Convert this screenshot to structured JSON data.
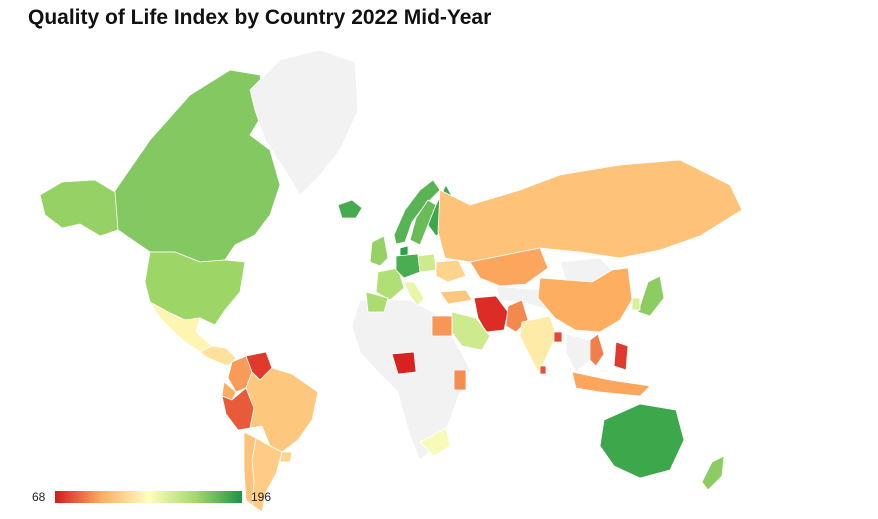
{
  "title": "Quality of Life Index by Country 2022 Mid-Year",
  "legend": {
    "min_label": "68",
    "max_label": "196",
    "min": 68,
    "max": 196
  },
  "colors": {
    "scale": [
      "#d7191c",
      "#fdae61",
      "#ffffbf",
      "#a6d96a",
      "#1a9641"
    ],
    "no_data": "#f2f2f2",
    "border": "#ffffff"
  },
  "map_data": {
    "type": "choropleth",
    "metric": "Quality of Life Index",
    "regions": [
      {
        "name": "Canada",
        "value": 172
      },
      {
        "name": "Alaska (United States)",
        "value": 168
      },
      {
        "name": "United States",
        "value": 166
      },
      {
        "name": "Mexico",
        "value": 128
      },
      {
        "name": "Central America",
        "value": 120
      },
      {
        "name": "Colombia",
        "value": 96
      },
      {
        "name": "Venezuela",
        "value": 75
      },
      {
        "name": "Ecuador",
        "value": 100
      },
      {
        "name": "Peru",
        "value": 82
      },
      {
        "name": "Brazil",
        "value": 110
      },
      {
        "name": "Argentina",
        "value": 112
      },
      {
        "name": "Chile",
        "value": 108
      },
      {
        "name": "Uruguay",
        "value": 115
      },
      {
        "name": "Greenland",
        "value": null
      },
      {
        "name": "Iceland",
        "value": 186
      },
      {
        "name": "Norway",
        "value": 182
      },
      {
        "name": "Sweden",
        "value": 178
      },
      {
        "name": "Finland",
        "value": 188
      },
      {
        "name": "Denmark",
        "value": 192
      },
      {
        "name": "United Kingdom",
        "value": 168
      },
      {
        "name": "France",
        "value": 160
      },
      {
        "name": "Spain",
        "value": 162
      },
      {
        "name": "Germany",
        "value": 185
      },
      {
        "name": "Italy",
        "value": 140
      },
      {
        "name": "Poland",
        "value": 150
      },
      {
        "name": "Ukraine",
        "value": 115
      },
      {
        "name": "Russia",
        "value": 108
      },
      {
        "name": "Kazakhstan",
        "value": 98
      },
      {
        "name": "Mongolia",
        "value": null
      },
      {
        "name": "China",
        "value": 100
      },
      {
        "name": "Japan",
        "value": 170
      },
      {
        "name": "South Korea",
        "value": 145
      },
      {
        "name": "Turkey",
        "value": 110
      },
      {
        "name": "Iran",
        "value": 72
      },
      {
        "name": "Saudi Arabia",
        "value": 150
      },
      {
        "name": "Pakistan",
        "value": 92
      },
      {
        "name": "India",
        "value": 124
      },
      {
        "name": "Bangladesh",
        "value": 78
      },
      {
        "name": "Sri Lanka",
        "value": 80
      },
      {
        "name": "Vietnam",
        "value": 90
      },
      {
        "name": "Philippines",
        "value": 75
      },
      {
        "name": "Indonesia",
        "value": 98
      },
      {
        "name": "Egypt",
        "value": 95
      },
      {
        "name": "Nigeria",
        "value": 70
      },
      {
        "name": "Kenya",
        "value": 93
      },
      {
        "name": "South Africa",
        "value": 135
      },
      {
        "name": "Australia",
        "value": 188
      },
      {
        "name": "New Zealand",
        "value": 170
      }
    ]
  }
}
